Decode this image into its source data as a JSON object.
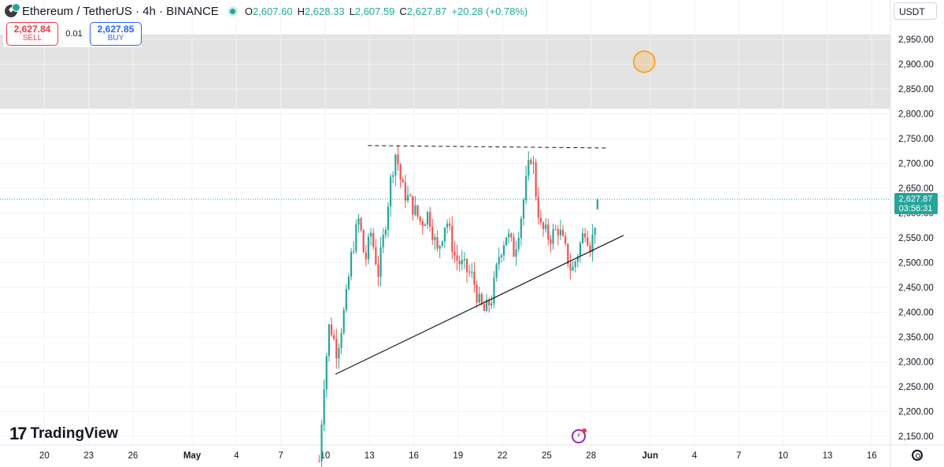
{
  "header": {
    "symbol_title": "Ethereum / TetherUS · 4h · BINANCE",
    "ohlc": {
      "o_label": "O",
      "o_value": "2,607.60",
      "h_label": "H",
      "h_value": "2,628.33",
      "l_label": "L",
      "l_value": "2,607.59",
      "c_label": "C",
      "c_value": "2,627.87",
      "change": "+20.28 (+0.78%)"
    }
  },
  "trade": {
    "sell_price": "2,627.84",
    "sell_label": "SELL",
    "spread": "0.01",
    "buy_price": "2,627.85",
    "buy_label": "BUY"
  },
  "currency": "USDT",
  "branding": "TradingView",
  "last_price": {
    "value": "2,627.87",
    "countdown": "03:56:31"
  },
  "colors": {
    "up": "#26a69a",
    "down": "#ef5350",
    "last_price_line": "#26a69a",
    "zone": "#e0e0e0"
  },
  "chart_data": {
    "type": "candlestick",
    "symbol": "ETHUSDT",
    "interval": "4h",
    "ylim": [
      2130,
      2965
    ],
    "y_ticks": [
      {
        "value": 2950,
        "label": "2,950.00"
      },
      {
        "value": 2900,
        "label": "2,900.00"
      },
      {
        "value": 2850,
        "label": "2,850.00"
      },
      {
        "value": 2800,
        "label": "2,800.00"
      },
      {
        "value": 2750,
        "label": "2,750.00"
      },
      {
        "value": 2700,
        "label": "2,700.00"
      },
      {
        "value": 2650,
        "label": "2,650.00"
      },
      {
        "value": 2600,
        "label": "2,600.00"
      },
      {
        "value": 2550,
        "label": "2,550.00"
      },
      {
        "value": 2500,
        "label": "2,500.00"
      },
      {
        "value": 2450,
        "label": "2,450.00"
      },
      {
        "value": 2400,
        "label": "2,400.00"
      },
      {
        "value": 2350,
        "label": "2,350.00"
      },
      {
        "value": 2300,
        "label": "2,300.00"
      },
      {
        "value": 2250,
        "label": "2,250.00"
      },
      {
        "value": 2200,
        "label": "2,200.00"
      },
      {
        "value": 2150,
        "label": "2,150.00"
      }
    ],
    "x_days_range": [
      -11.4,
      43.4
    ],
    "x_ticks": [
      {
        "day": 20,
        "label": "20"
      },
      {
        "day": 23,
        "label": "23"
      },
      {
        "day": 26,
        "label": "26"
      },
      {
        "day": 30,
        "label": "May"
      },
      {
        "day": 33,
        "label": "4"
      },
      {
        "day": 36,
        "label": "7"
      },
      {
        "day": 39,
        "label": "10"
      },
      {
        "day": 42,
        "label": "13"
      },
      {
        "day": 45,
        "label": "16"
      },
      {
        "day": 48,
        "label": "19"
      },
      {
        "day": 51,
        "label": "22"
      },
      {
        "day": 54,
        "label": "25"
      },
      {
        "day": 57,
        "label": "28"
      },
      {
        "day": 61,
        "label": "Jun"
      },
      {
        "day": 64,
        "label": "4"
      },
      {
        "day": 67,
        "label": "7"
      },
      {
        "day": 70,
        "label": "10"
      },
      {
        "day": 73,
        "label": "13"
      },
      {
        "day": 76,
        "label": "16"
      }
    ],
    "tick_day_offset": -30,
    "price_waypoints": [
      {
        "d": 8.6,
        "p": 2100
      },
      {
        "d": 8.9,
        "p": 2250
      },
      {
        "d": 9.3,
        "p": 2380
      },
      {
        "d": 9.8,
        "p": 2320
      },
      {
        "d": 10.4,
        "p": 2420
      },
      {
        "d": 10.8,
        "p": 2520
      },
      {
        "d": 11.3,
        "p": 2590
      },
      {
        "d": 11.7,
        "p": 2500
      },
      {
        "d": 12.1,
        "p": 2560
      },
      {
        "d": 12.6,
        "p": 2480
      },
      {
        "d": 13.0,
        "p": 2560
      },
      {
        "d": 13.5,
        "p": 2680
      },
      {
        "d": 13.8,
        "p": 2725
      },
      {
        "d": 14.2,
        "p": 2650
      },
      {
        "d": 14.8,
        "p": 2620
      },
      {
        "d": 15.5,
        "p": 2580
      },
      {
        "d": 16.0,
        "p": 2600
      },
      {
        "d": 16.6,
        "p": 2520
      },
      {
        "d": 17.2,
        "p": 2590
      },
      {
        "d": 17.8,
        "p": 2510
      },
      {
        "d": 18.4,
        "p": 2490
      },
      {
        "d": 19.0,
        "p": 2470
      },
      {
        "d": 19.4,
        "p": 2420
      },
      {
        "d": 19.8,
        "p": 2400
      },
      {
        "d": 20.3,
        "p": 2430
      },
      {
        "d": 20.8,
        "p": 2520
      },
      {
        "d": 21.3,
        "p": 2560
      },
      {
        "d": 21.8,
        "p": 2520
      },
      {
        "d": 22.3,
        "p": 2600
      },
      {
        "d": 22.7,
        "p": 2680
      },
      {
        "d": 23.0,
        "p": 2725
      },
      {
        "d": 23.3,
        "p": 2630
      },
      {
        "d": 23.6,
        "p": 2570
      },
      {
        "d": 24.2,
        "p": 2550
      },
      {
        "d": 24.8,
        "p": 2570
      },
      {
        "d": 25.3,
        "p": 2520
      },
      {
        "d": 25.7,
        "p": 2480
      },
      {
        "d": 26.2,
        "p": 2530
      },
      {
        "d": 26.6,
        "p": 2570
      },
      {
        "d": 27.0,
        "p": 2530
      },
      {
        "d": 27.3,
        "p": 2590
      },
      {
        "d": 27.45,
        "p": 2627.87
      }
    ],
    "zone": {
      "label": "",
      "y_low": 2810,
      "y_high": 2960
    },
    "resistance_line": {
      "style": "dashed",
      "d1": 11.9,
      "p1": 2736,
      "d2": 28.2,
      "p2": 2731
    },
    "support_line": {
      "style": "solid",
      "d1": 9.7,
      "p1": 2275,
      "d2": 29.2,
      "p2": 2555
    },
    "marker": {
      "d": 30.6,
      "p": 2905
    },
    "last_price_value": 2627.87
  }
}
